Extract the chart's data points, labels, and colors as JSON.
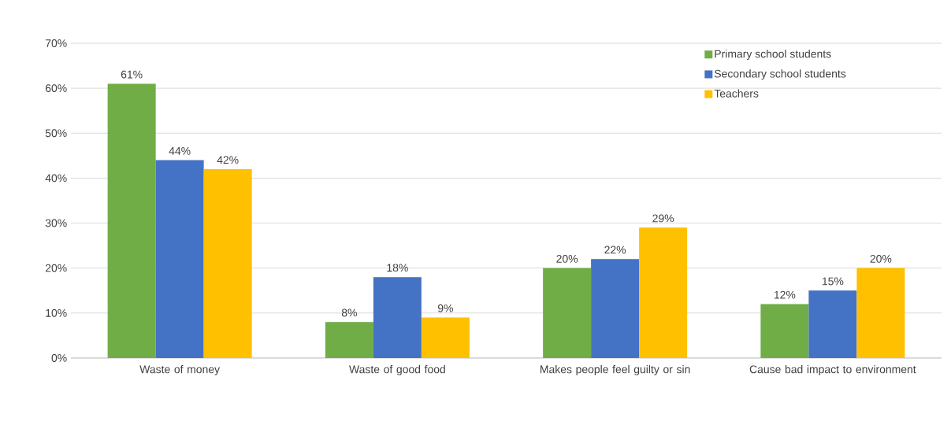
{
  "chart_data": {
    "type": "bar",
    "categories": [
      "Waste of money",
      "Waste of good food",
      "Makes people feel guilty or sin",
      "Cause bad impact to environment"
    ],
    "series": [
      {
        "name": "Primary school students",
        "color": "#70ad47",
        "values": [
          61,
          8,
          20,
          12
        ],
        "value_labels": [
          "61%",
          "8%",
          "20%",
          "12%"
        ]
      },
      {
        "name": "Secondary school students",
        "color": "#4472c4",
        "values": [
          44,
          18,
          22,
          15
        ],
        "value_labels": [
          "44%",
          "18%",
          "22%",
          "15%"
        ]
      },
      {
        "name": "Teachers",
        "color": "#ffc000",
        "values": [
          42,
          9,
          29,
          20
        ],
        "value_labels": [
          "42%",
          "9%",
          "29%",
          "20%"
        ]
      }
    ],
    "ylim": [
      0,
      70
    ],
    "yticks": [
      {
        "value": 0,
        "label": "0%"
      },
      {
        "value": 10,
        "label": "10%"
      },
      {
        "value": 20,
        "label": "20%"
      },
      {
        "value": 30,
        "label": "30%"
      },
      {
        "value": 40,
        "label": "40%"
      },
      {
        "value": 50,
        "label": "50%"
      },
      {
        "value": 60,
        "label": "60%"
      },
      {
        "value": 70,
        "label": "70%"
      }
    ],
    "grid": "y",
    "legend": "top right"
  }
}
